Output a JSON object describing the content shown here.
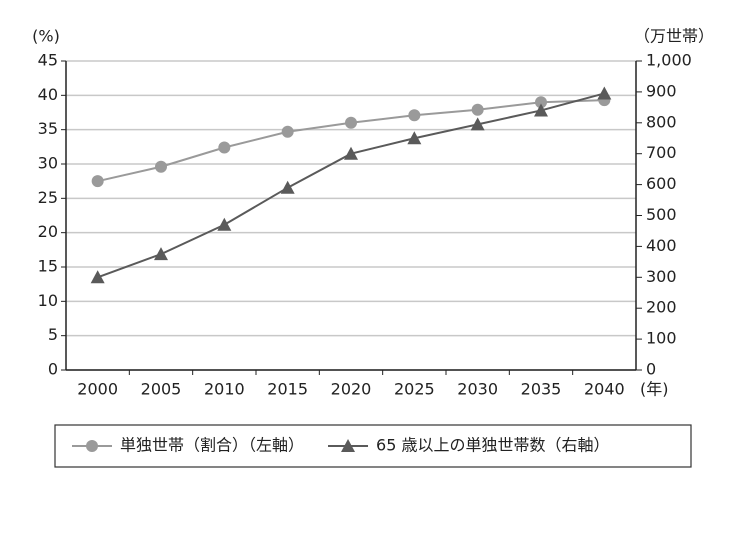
{
  "chart_data": {
    "type": "line",
    "y_label": "(%)",
    "y2_label": "（万世帯）",
    "x_label": "(年)",
    "categories": [
      "2000",
      "2005",
      "2010",
      "2015",
      "2020",
      "2025",
      "2030",
      "2035",
      "2040"
    ],
    "series": [
      {
        "name": "単独世帯（割合）（左軸）",
        "color": "#9a9a9a",
        "marker": "circle",
        "values": [
          27.5,
          29.6,
          32.4,
          34.7,
          36.0,
          37.1,
          37.9,
          39.0,
          39.3
        ]
      },
      {
        "name": "65 歳以上の単独世帯数（右軸）",
        "color": "#5a5a5a",
        "marker": "triangle",
        "axis": "y2",
        "values": [
          300,
          375,
          470,
          590,
          700,
          750,
          795,
          840,
          895
        ]
      }
    ],
    "ylim": [
      0,
      45
    ],
    "yticks": [
      0,
      5,
      10,
      15,
      20,
      25,
      30,
      35,
      40,
      45
    ],
    "y2lim": [
      0,
      1000
    ],
    "y2ticks": [
      0,
      100,
      200,
      300,
      400,
      500,
      600,
      700,
      800,
      900,
      {
        "value": 1000,
        "label": "1,000"
      }
    ],
    "grid": true
  }
}
